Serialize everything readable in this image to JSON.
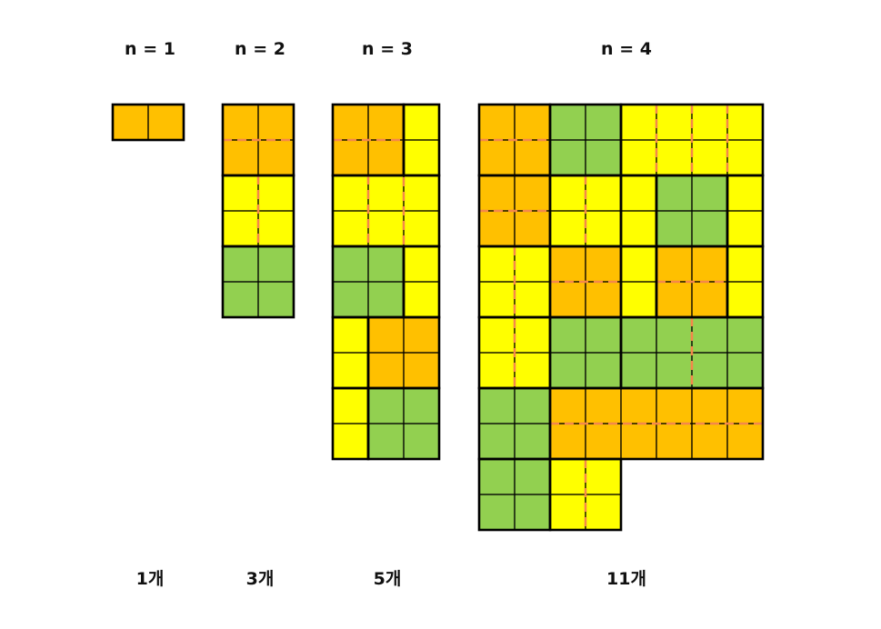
{
  "colors": {
    "orange": "#FFC000",
    "yellow": "#FFFF00",
    "green": "#92D050",
    "border": "#000000",
    "dash": "#F4874B"
  },
  "groups": [
    {
      "title": "n = 1",
      "count": "1개",
      "cols": 2,
      "rows": 1,
      "blocks": [
        {
          "color": "orange",
          "c0": 0,
          "r0": 0,
          "c1": 2,
          "r1": 1
        }
      ],
      "dashes": []
    },
    {
      "title": "n = 2",
      "count": "3개",
      "cols": 2,
      "rows": 6,
      "blocks": [
        {
          "color": "orange",
          "c0": 0,
          "r0": 0,
          "c1": 2,
          "r1": 2
        },
        {
          "color": "yellow",
          "c0": 0,
          "r0": 2,
          "c1": 2,
          "r1": 4
        },
        {
          "color": "green",
          "c0": 0,
          "r0": 4,
          "c1": 2,
          "r1": 6
        }
      ],
      "dashes": [
        {
          "dir": "h",
          "at": 1,
          "from": 0,
          "to": 2
        },
        {
          "dir": "v",
          "at": 1,
          "from": 2,
          "to": 4
        }
      ]
    },
    {
      "title": "n = 3",
      "count": "5개",
      "cols": 3,
      "rows": 10,
      "blocks": [
        {
          "color": "orange",
          "c0": 0,
          "r0": 0,
          "c1": 2,
          "r1": 2
        },
        {
          "color": "yellow",
          "c0": 2,
          "r0": 0,
          "c1": 3,
          "r1": 2
        },
        {
          "color": "yellow",
          "c0": 0,
          "r0": 2,
          "c1": 3,
          "r1": 4
        },
        {
          "color": "green",
          "c0": 0,
          "r0": 4,
          "c1": 2,
          "r1": 6
        },
        {
          "color": "yellow",
          "c0": 2,
          "r0": 4,
          "c1": 3,
          "r1": 6
        },
        {
          "color": "yellow",
          "c0": 0,
          "r0": 6,
          "c1": 1,
          "r1": 8
        },
        {
          "color": "orange",
          "c0": 1,
          "r0": 6,
          "c1": 3,
          "r1": 8
        },
        {
          "color": "yellow",
          "c0": 0,
          "r0": 8,
          "c1": 1,
          "r1": 10
        },
        {
          "color": "green",
          "c0": 1,
          "r0": 8,
          "c1": 3,
          "r1": 10
        }
      ],
      "dashes": [
        {
          "dir": "h",
          "at": 1,
          "from": 0,
          "to": 2
        },
        {
          "dir": "v",
          "at": 2,
          "from": 0,
          "to": 6
        },
        {
          "dir": "v",
          "at": 1,
          "from": 2,
          "to": 4
        }
      ]
    },
    {
      "title": "n = 4",
      "count": "11개",
      "cols": 8,
      "rows": 12,
      "blocks": [
        {
          "color": "orange",
          "c0": 0,
          "r0": 0,
          "c1": 2,
          "r1": 2
        },
        {
          "color": "green",
          "c0": 2,
          "r0": 0,
          "c1": 4,
          "r1": 2
        },
        {
          "color": "yellow",
          "c0": 4,
          "r0": 0,
          "c1": 8,
          "r1": 2
        },
        {
          "color": "orange",
          "c0": 0,
          "r0": 2,
          "c1": 2,
          "r1": 4
        },
        {
          "color": "yellow",
          "c0": 2,
          "r0": 2,
          "c1": 4,
          "r1": 4
        },
        {
          "color": "yellow",
          "c0": 4,
          "r0": 2,
          "c1": 5,
          "r1": 4
        },
        {
          "color": "green",
          "c0": 5,
          "r0": 2,
          "c1": 7,
          "r1": 4
        },
        {
          "color": "yellow",
          "c0": 7,
          "r0": 2,
          "c1": 8,
          "r1": 4
        },
        {
          "color": "yellow",
          "c0": 0,
          "r0": 4,
          "c1": 2,
          "r1": 6
        },
        {
          "color": "orange",
          "c0": 2,
          "r0": 4,
          "c1": 4,
          "r1": 6
        },
        {
          "color": "yellow",
          "c0": 4,
          "r0": 4,
          "c1": 5,
          "r1": 6
        },
        {
          "color": "orange",
          "c0": 5,
          "r0": 4,
          "c1": 7,
          "r1": 6
        },
        {
          "color": "yellow",
          "c0": 7,
          "r0": 4,
          "c1": 8,
          "r1": 6
        },
        {
          "color": "yellow",
          "c0": 0,
          "r0": 6,
          "c1": 2,
          "r1": 8
        },
        {
          "color": "green",
          "c0": 2,
          "r0": 6,
          "c1": 4,
          "r1": 8
        },
        {
          "color": "green",
          "c0": 4,
          "r0": 6,
          "c1": 8,
          "r1": 8
        },
        {
          "color": "green",
          "c0": 0,
          "r0": 8,
          "c1": 2,
          "r1": 10
        },
        {
          "color": "orange",
          "c0": 2,
          "r0": 8,
          "c1": 8,
          "r1": 10
        },
        {
          "color": "green",
          "c0": 0,
          "r0": 10,
          "c1": 2,
          "r1": 12
        },
        {
          "color": "yellow",
          "c0": 2,
          "r0": 10,
          "c1": 4,
          "r1": 12
        }
      ],
      "dashes": [
        {
          "dir": "h",
          "at": 1,
          "from": 0,
          "to": 2
        },
        {
          "dir": "h",
          "at": 3,
          "from": 0,
          "to": 2
        },
        {
          "dir": "v",
          "at": 5,
          "from": 0,
          "to": 2
        },
        {
          "dir": "v",
          "at": 6,
          "from": 0,
          "to": 2
        },
        {
          "dir": "v",
          "at": 7,
          "from": 0,
          "to": 2
        },
        {
          "dir": "v",
          "at": 3,
          "from": 2,
          "to": 4
        },
        {
          "dir": "v",
          "at": 1,
          "from": 4,
          "to": 8
        },
        {
          "dir": "h",
          "at": 5,
          "from": 2,
          "to": 4
        },
        {
          "dir": "h",
          "at": 5,
          "from": 5,
          "to": 7
        },
        {
          "dir": "v",
          "at": 6,
          "from": 6,
          "to": 8
        },
        {
          "dir": "h",
          "at": 9,
          "from": 2,
          "to": 8
        },
        {
          "dir": "v",
          "at": 3,
          "from": 10,
          "to": 12
        }
      ]
    }
  ]
}
